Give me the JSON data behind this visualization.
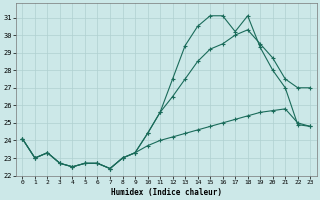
{
  "xlabel": "Humidex (Indice chaleur)",
  "bg_color": "#cce8e8",
  "grid_color": "#b0d0d0",
  "line_color": "#1a6b5a",
  "xlim": [
    -0.5,
    23.5
  ],
  "ylim": [
    22.0,
    31.8
  ],
  "yticks": [
    22,
    23,
    24,
    25,
    26,
    27,
    28,
    29,
    30,
    31
  ],
  "xticks": [
    0,
    1,
    2,
    3,
    4,
    5,
    6,
    7,
    8,
    9,
    10,
    11,
    12,
    13,
    14,
    15,
    16,
    17,
    18,
    19,
    20,
    21,
    22,
    23
  ],
  "series": [
    {
      "x": [
        0,
        1,
        2,
        3,
        4,
        5,
        6,
        7,
        8,
        9,
        10,
        11,
        12,
        13,
        14,
        15,
        16,
        17,
        18,
        19,
        20,
        21,
        22,
        23
      ],
      "y": [
        24.1,
        23.0,
        23.3,
        22.7,
        22.5,
        22.7,
        22.7,
        22.4,
        23.0,
        23.3,
        24.4,
        25.6,
        27.5,
        29.4,
        30.5,
        31.1,
        31.1,
        30.2,
        31.1,
        29.3,
        28.0,
        27.0,
        24.9,
        24.8
      ]
    },
    {
      "x": [
        0,
        1,
        2,
        3,
        4,
        5,
        6,
        7,
        8,
        9,
        10,
        11,
        12,
        13,
        14,
        15,
        16,
        17,
        18,
        19,
        20,
        21,
        22,
        23
      ],
      "y": [
        24.1,
        23.0,
        23.3,
        22.7,
        22.5,
        22.7,
        22.7,
        22.4,
        23.0,
        23.3,
        24.4,
        25.6,
        26.5,
        27.5,
        28.5,
        29.2,
        29.5,
        30.0,
        30.3,
        29.5,
        28.7,
        27.5,
        27.0,
        27.0
      ]
    },
    {
      "x": [
        0,
        1,
        2,
        3,
        4,
        5,
        6,
        7,
        8,
        9,
        10,
        11,
        12,
        13,
        14,
        15,
        16,
        17,
        18,
        19,
        20,
        21,
        22,
        23
      ],
      "y": [
        24.1,
        23.0,
        23.3,
        22.7,
        22.5,
        22.7,
        22.7,
        22.4,
        23.0,
        23.3,
        23.7,
        24.0,
        24.2,
        24.4,
        24.6,
        24.8,
        25.0,
        25.2,
        25.4,
        25.6,
        25.7,
        25.8,
        25.0,
        24.8
      ]
    }
  ]
}
